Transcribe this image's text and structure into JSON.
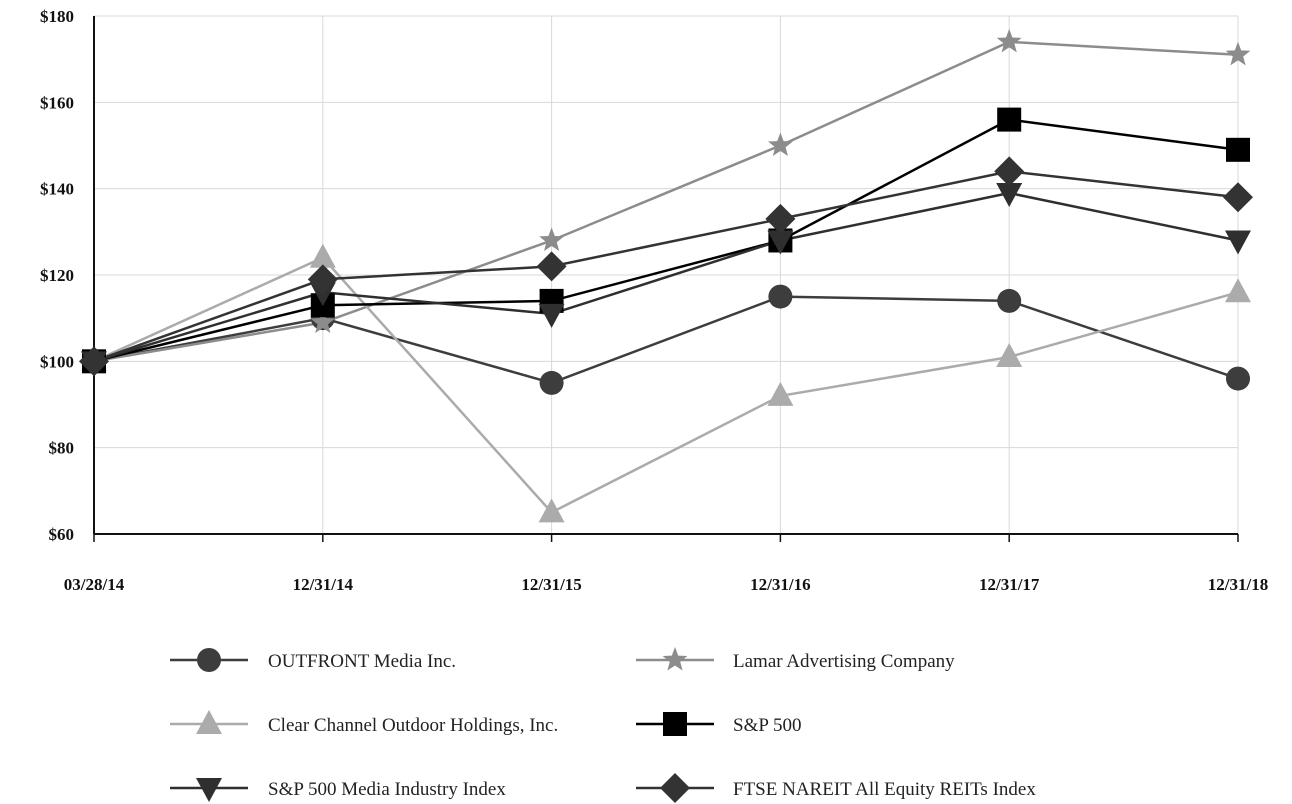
{
  "chart_data": {
    "type": "line",
    "title": "",
    "xlabel": "",
    "ylabel": "",
    "categories": [
      "03/28/14",
      "12/31/14",
      "12/31/15",
      "12/31/16",
      "12/31/17",
      "12/31/18"
    ],
    "y_ticks": [
      "$60",
      "$80",
      "$100",
      "$120",
      "$140",
      "$160",
      "$180"
    ],
    "ylim": [
      60,
      180
    ],
    "grid": true,
    "legend_position": "bottom",
    "series": [
      {
        "name": "OUTFRONT Media Inc.",
        "marker": "circle",
        "color": "#3d3d3d",
        "values": [
          100,
          110,
          95,
          115,
          114,
          96
        ]
      },
      {
        "name": "Lamar Advertising Company",
        "marker": "star",
        "color": "#8c8c8c",
        "values": [
          100,
          109,
          128,
          150,
          174,
          171
        ]
      },
      {
        "name": "Clear Channel Outdoor Holdings, Inc.",
        "marker": "triangle-up",
        "color": "#ababab",
        "values": [
          100,
          124,
          65,
          92,
          101,
          116
        ]
      },
      {
        "name": "S&P 500",
        "marker": "square",
        "color": "#000000",
        "values": [
          100,
          113,
          114,
          128,
          156,
          149
        ]
      },
      {
        "name": "S&P 500 Media Industry Index",
        "marker": "triangle-down",
        "color": "#2f2f2f",
        "values": [
          100,
          116,
          111,
          128,
          139,
          128
        ]
      },
      {
        "name": "FTSE NAREIT All Equity REITs Index",
        "marker": "diamond",
        "color": "#333333",
        "values": [
          100,
          119,
          122,
          133,
          144,
          138
        ]
      }
    ]
  }
}
